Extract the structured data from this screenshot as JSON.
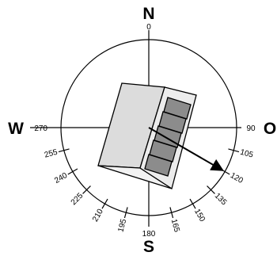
{
  "compass": {
    "cardinals": {
      "north": "N",
      "south": "S",
      "west": "W",
      "east": "O"
    },
    "axis_degrees": {
      "north": "0",
      "east": "90",
      "south": "180",
      "west": "270"
    },
    "ticks": [
      "105",
      "120",
      "135",
      "150",
      "165",
      "195",
      "210",
      "225",
      "240",
      "255"
    ],
    "orientation_arrow_degrees": 120
  },
  "colors": {
    "line": "#000000",
    "building_top": "#dcdcdc",
    "building_front": "#f2f2f2",
    "building_side": "#ececec",
    "panel_fill": "#8c8c8c"
  }
}
